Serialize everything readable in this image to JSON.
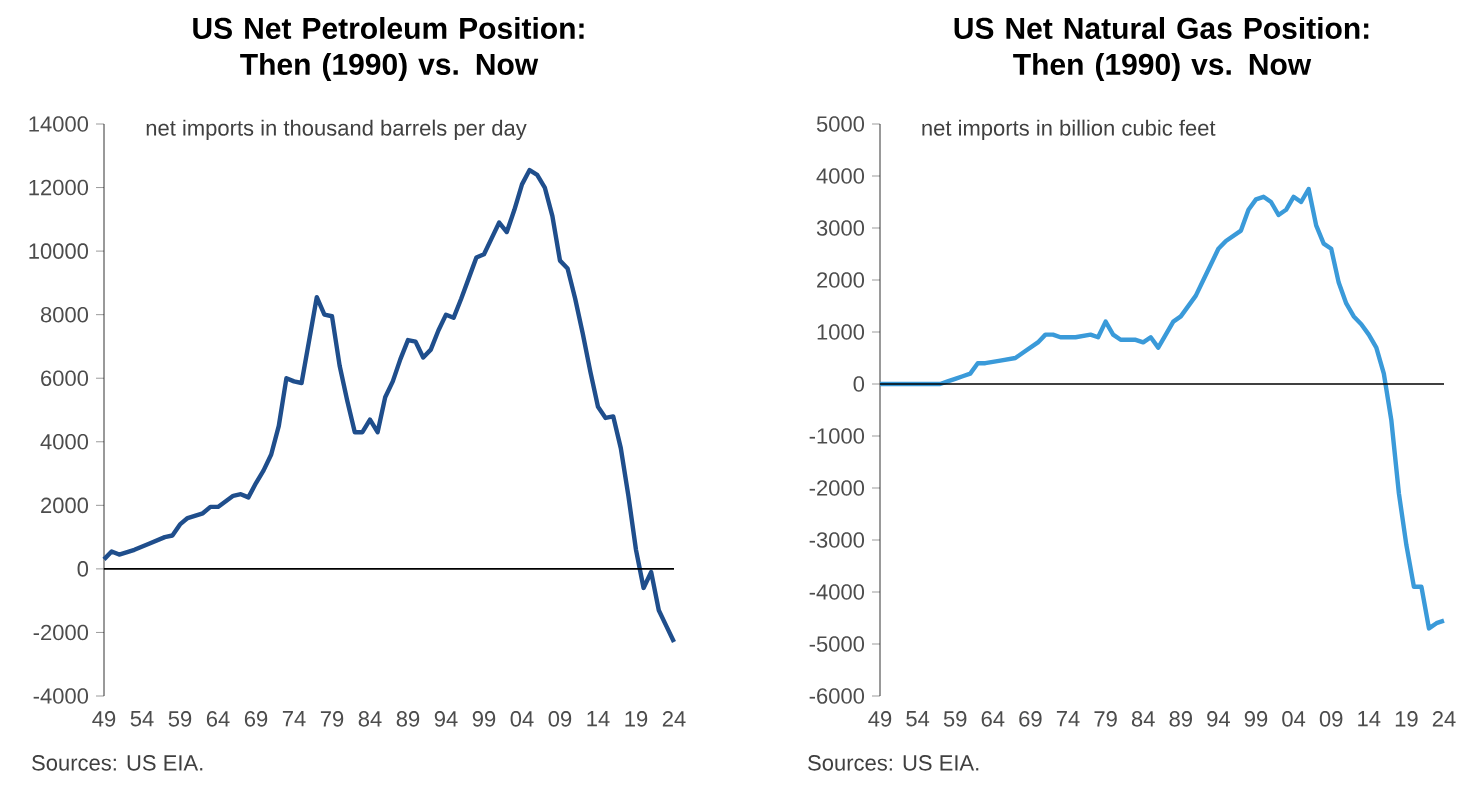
{
  "chart_data": [
    {
      "type": "line",
      "title": "US Net Petroleum Position: Then (1990) vs. Now",
      "subtitle": "net imports in thousand barrels per day",
      "annotations": [
        "Sources: US EIA."
      ],
      "x": [
        1949,
        1950,
        1951,
        1953,
        1955,
        1957,
        1958,
        1959,
        1960,
        1962,
        1963,
        1964,
        1966,
        1967,
        1968,
        1969,
        1970,
        1971,
        1972,
        1973,
        1974,
        1975,
        1976,
        1977,
        1978,
        1979,
        1980,
        1981,
        1982,
        1983,
        1984,
        1985,
        1986,
        1987,
        1988,
        1989,
        1990,
        1991,
        1992,
        1993,
        1994,
        1995,
        1996,
        1997,
        1998,
        1999,
        2000,
        2001,
        2002,
        2003,
        2004,
        2005,
        2006,
        2007,
        2008,
        2009,
        2010,
        2011,
        2012,
        2013,
        2014,
        2015,
        2016,
        2017,
        2018,
        2019,
        2020,
        2021,
        2022,
        2023,
        2024
      ],
      "series": [
        {
          "color": "#1f4e8c",
          "values": [
            300,
            550,
            450,
            600,
            800,
            1000,
            1050,
            1400,
            1600,
            1750,
            1950,
            1950,
            2300,
            2350,
            2250,
            2700,
            3100,
            3600,
            4500,
            6000,
            5900,
            5850,
            7200,
            8550,
            8000,
            7950,
            6400,
            5300,
            4300,
            4300,
            4700,
            4300,
            5400,
            5900,
            6600,
            7200,
            7150,
            6650,
            6900,
            7500,
            8000,
            7900,
            8500,
            9150,
            9800,
            9900,
            10400,
            10900,
            10600,
            11300,
            12100,
            12550,
            12400,
            12000,
            11100,
            9700,
            9450,
            8500,
            7400,
            6200,
            5100,
            4750,
            4800,
            3800,
            2300,
            600,
            -600,
            -100,
            -1300,
            -1800,
            -2300
          ]
        }
      ],
      "xlim": [
        1949,
        2024
      ],
      "xticks": [
        {
          "value": 1949,
          "label": "49"
        },
        {
          "value": 1954,
          "label": "54"
        },
        {
          "value": 1959,
          "label": "59"
        },
        {
          "value": 1964,
          "label": "64"
        },
        {
          "value": 1969,
          "label": "69"
        },
        {
          "value": 1974,
          "label": "74"
        },
        {
          "value": 1979,
          "label": "79"
        },
        {
          "value": 1984,
          "label": "84"
        },
        {
          "value": 1989,
          "label": "89"
        },
        {
          "value": 1994,
          "label": "94"
        },
        {
          "value": 1999,
          "label": "99"
        },
        {
          "value": 2004,
          "label": "04"
        },
        {
          "value": 2009,
          "label": "09"
        },
        {
          "value": 2014,
          "label": "14"
        },
        {
          "value": 2019,
          "label": "19"
        },
        {
          "value": 2024,
          "label": "24"
        }
      ],
      "ylim": [
        -4000,
        14000
      ],
      "yticks": [
        -4000,
        -2000,
        0,
        2000,
        4000,
        6000,
        8000,
        10000,
        12000,
        14000
      ],
      "ref_lines": [
        {
          "axis": "y",
          "value": 0,
          "color": "#000000"
        }
      ]
    },
    {
      "type": "line",
      "title": "US Net Natural Gas Position: Then (1990) vs. Now",
      "subtitle": "net imports in billion cubic feet",
      "annotations": [
        "Sources: US EIA."
      ],
      "x": [
        1949,
        1957,
        1958,
        1959,
        1960,
        1961,
        1962,
        1963,
        1965,
        1967,
        1968,
        1969,
        1970,
        1971,
        1972,
        1973,
        1975,
        1977,
        1978,
        1979,
        1980,
        1981,
        1983,
        1984,
        1985,
        1986,
        1987,
        1988,
        1989,
        1990,
        1991,
        1992,
        1993,
        1994,
        1995,
        1996,
        1997,
        1998,
        1999,
        2000,
        2001,
        2002,
        2003,
        2004,
        2005,
        2006,
        2007,
        2008,
        2009,
        2010,
        2011,
        2012,
        2013,
        2014,
        2015,
        2016,
        2017,
        2018,
        2019,
        2020,
        2021,
        2022,
        2023,
        2024
      ],
      "series": [
        {
          "color": "#3a9ad9",
          "values": [
            0,
            0,
            50,
            100,
            150,
            200,
            400,
            400,
            450,
            500,
            600,
            700,
            800,
            950,
            950,
            900,
            900,
            950,
            900,
            1200,
            950,
            850,
            850,
            800,
            900,
            700,
            950,
            1200,
            1300,
            1500,
            1700,
            2000,
            2300,
            2600,
            2750,
            2850,
            2950,
            3350,
            3550,
            3600,
            3500,
            3250,
            3350,
            3600,
            3500,
            3750,
            3050,
            2700,
            2600,
            1950,
            1550,
            1300,
            1150,
            950,
            700,
            200,
            -700,
            -2100,
            -3100,
            -3900,
            -3900,
            -4700,
            -4600,
            -4550
          ]
        }
      ],
      "xlim": [
        1949,
        2024
      ],
      "xticks": [
        {
          "value": 1949,
          "label": "49"
        },
        {
          "value": 1954,
          "label": "54"
        },
        {
          "value": 1959,
          "label": "59"
        },
        {
          "value": 1964,
          "label": "64"
        },
        {
          "value": 1969,
          "label": "69"
        },
        {
          "value": 1974,
          "label": "74"
        },
        {
          "value": 1979,
          "label": "79"
        },
        {
          "value": 1984,
          "label": "84"
        },
        {
          "value": 1989,
          "label": "89"
        },
        {
          "value": 1994,
          "label": "94"
        },
        {
          "value": 1999,
          "label": "99"
        },
        {
          "value": 2004,
          "label": "04"
        },
        {
          "value": 2009,
          "label": "09"
        },
        {
          "value": 2014,
          "label": "14"
        },
        {
          "value": 2019,
          "label": "19"
        },
        {
          "value": 2024,
          "label": "24"
        }
      ],
      "ylim": [
        -6000,
        5000
      ],
      "yticks": [
        -6000,
        -5000,
        -4000,
        -3000,
        -2000,
        -1000,
        0,
        1000,
        2000,
        3000,
        4000,
        5000
      ],
      "ref_lines": [
        {
          "axis": "y",
          "value": 0,
          "color": "#000000"
        }
      ]
    }
  ]
}
